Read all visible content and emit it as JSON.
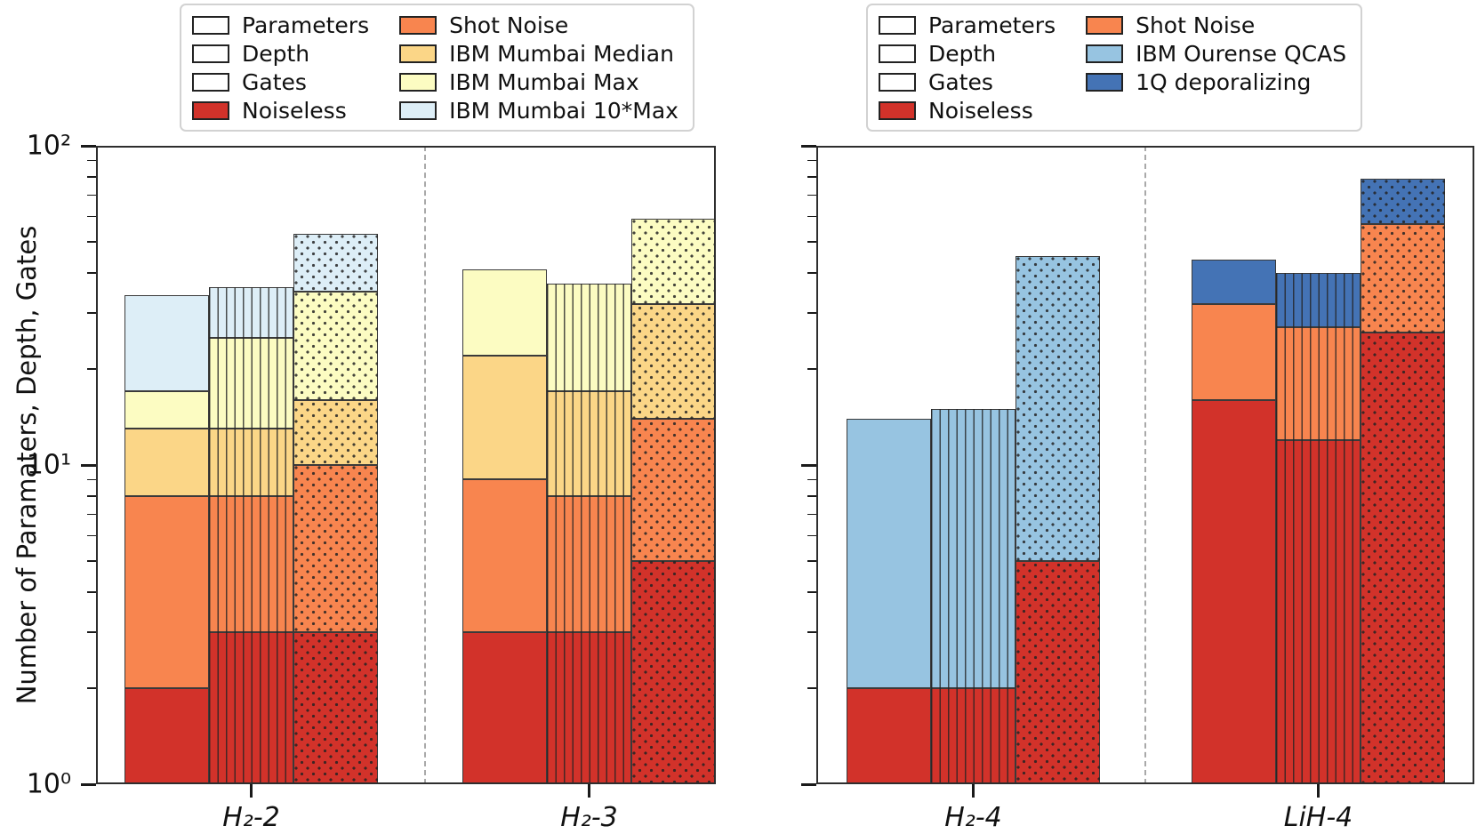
{
  "figure": {
    "ylabel": "Number of Paramaters, Depth, Gates",
    "y_axis": {
      "scale": "log",
      "min": 1,
      "max": 100,
      "tick_labels": [
        "10²",
        "10¹",
        "10⁰"
      ],
      "tick_values": [
        100,
        10,
        1
      ]
    }
  },
  "colors": {
    "noiseless": "#d2322a",
    "shot_noise": "#f8854f",
    "ibm_mumbai_median": "#fbd687",
    "ibm_mumbai_max": "#fcfcc2",
    "ibm_mumbai_10max": "#ddeef7",
    "ibm_ourense_qcas": "#97c4e1",
    "one_q_deporalizing": "#4473b5",
    "unfilled": "#ffffff"
  },
  "legend_left": {
    "columns": [
      [
        {
          "label": "Parameters",
          "fill": "#ffffff",
          "hatch": "none"
        },
        {
          "label": "Depth",
          "fill": "#ffffff",
          "hatch": "vertical"
        },
        {
          "label": "Gates",
          "fill": "#ffffff",
          "hatch": "dots"
        },
        {
          "label": "Noiseless",
          "fill": "#d2322a",
          "hatch": "none"
        }
      ],
      [
        {
          "label": "Shot Noise",
          "fill": "#f8854f",
          "hatch": "none"
        },
        {
          "label": "IBM Mumbai Median",
          "fill": "#fbd687",
          "hatch": "none"
        },
        {
          "label": "IBM Mumbai Max",
          "fill": "#fcfcc2",
          "hatch": "none"
        },
        {
          "label": "IBM Mumbai 10*Max",
          "fill": "#ddeef7",
          "hatch": "none"
        }
      ]
    ]
  },
  "legend_right": {
    "columns": [
      [
        {
          "label": "Parameters",
          "fill": "#ffffff",
          "hatch": "none"
        },
        {
          "label": "Depth",
          "fill": "#ffffff",
          "hatch": "vertical"
        },
        {
          "label": "Gates",
          "fill": "#ffffff",
          "hatch": "dots"
        },
        {
          "label": "Noiseless",
          "fill": "#d2322a",
          "hatch": "none"
        }
      ],
      [
        {
          "label": "Shot Noise",
          "fill": "#f8854f",
          "hatch": "none"
        },
        {
          "label": "IBM Ourense QCAS",
          "fill": "#97c4e1",
          "hatch": "none"
        },
        {
          "label": "1Q deporalizing",
          "fill": "#4473b5",
          "hatch": "none"
        }
      ]
    ]
  },
  "chart_data": [
    {
      "type": "bar",
      "panel": "left",
      "yscale": "log",
      "ylim": [
        1,
        100
      ],
      "ylabel": "Number of Paramaters, Depth, Gates",
      "grid": false,
      "legend_position": "top",
      "categories": [
        "H₂-2",
        "H₂-3"
      ],
      "bar_types": [
        {
          "name": "Parameters",
          "hatch": "none"
        },
        {
          "name": "Depth",
          "hatch": "vertical"
        },
        {
          "name": "Gates",
          "hatch": "dots"
        }
      ],
      "series": [
        {
          "name": "Noiseless",
          "color": "#d2322a"
        },
        {
          "name": "Shot Noise",
          "color": "#f8854f"
        },
        {
          "name": "IBM Mumbai Median",
          "color": "#fbd687"
        },
        {
          "name": "IBM Mumbai Max",
          "color": "#fcfcc2"
        },
        {
          "name": "IBM Mumbai 10*Max",
          "color": "#ddeef7"
        }
      ],
      "stack_note": "values are cumulative stack tops read off the log axis; every stack starts at 1",
      "bars": [
        {
          "category": "H₂-2",
          "bar_type": "Parameters",
          "cumulative": {
            "Noiseless": 2,
            "Shot Noise": 8,
            "IBM Mumbai Median": 13,
            "IBM Mumbai Max": 17,
            "IBM Mumbai 10*Max": 34
          }
        },
        {
          "category": "H₂-2",
          "bar_type": "Depth",
          "cumulative": {
            "Noiseless": 3,
            "Shot Noise": 8,
            "IBM Mumbai Median": 13,
            "IBM Mumbai Max": 25,
            "IBM Mumbai 10*Max": 36
          }
        },
        {
          "category": "H₂-2",
          "bar_type": "Gates",
          "cumulative": {
            "Noiseless": 3,
            "Shot Noise": 10,
            "IBM Mumbai Median": 16,
            "IBM Mumbai Max": 35,
            "IBM Mumbai 10*Max": 53
          }
        },
        {
          "category": "H₂-3",
          "bar_type": "Parameters",
          "cumulative": {
            "Noiseless": 3,
            "Shot Noise": 9,
            "IBM Mumbai Median": 22,
            "IBM Mumbai Max": 41
          }
        },
        {
          "category": "H₂-3",
          "bar_type": "Depth",
          "cumulative": {
            "Noiseless": 3,
            "Shot Noise": 8,
            "IBM Mumbai Median": 17,
            "IBM Mumbai Max": 37
          }
        },
        {
          "category": "H₂-3",
          "bar_type": "Gates",
          "cumulative": {
            "Noiseless": 5,
            "Shot Noise": 14,
            "IBM Mumbai Median": 32,
            "IBM Mumbai Max": 59
          }
        }
      ]
    },
    {
      "type": "bar",
      "panel": "right",
      "yscale": "log",
      "ylim": [
        1,
        100
      ],
      "grid": false,
      "legend_position": "top",
      "categories": [
        "H₂-4",
        "LiH-4"
      ],
      "bar_types": [
        {
          "name": "Parameters",
          "hatch": "none"
        },
        {
          "name": "Depth",
          "hatch": "vertical"
        },
        {
          "name": "Gates",
          "hatch": "dots"
        }
      ],
      "series": [
        {
          "name": "Noiseless",
          "color": "#d2322a"
        },
        {
          "name": "Shot Noise",
          "color": "#f8854f"
        },
        {
          "name": "IBM Ourense QCAS",
          "color": "#97c4e1"
        },
        {
          "name": "1Q deporalizing",
          "color": "#4473b5"
        }
      ],
      "stack_note": "values are cumulative stack tops read off the log axis; every stack starts at 1",
      "bars": [
        {
          "category": "H₂-4",
          "bar_type": "Parameters",
          "cumulative": {
            "Noiseless": 2,
            "IBM Ourense QCAS": 14
          }
        },
        {
          "category": "H₂-4",
          "bar_type": "Depth",
          "cumulative": {
            "Noiseless": 2,
            "IBM Ourense QCAS": 15
          }
        },
        {
          "category": "H₂-4",
          "bar_type": "Gates",
          "cumulative": {
            "Noiseless": 5,
            "IBM Ourense QCAS": 45
          }
        },
        {
          "category": "LiH-4",
          "bar_type": "Parameters",
          "cumulative": {
            "Noiseless": 16,
            "Shot Noise": 32,
            "1Q deporalizing": 44
          }
        },
        {
          "category": "LiH-4",
          "bar_type": "Depth",
          "cumulative": {
            "Noiseless": 12,
            "Shot Noise": 27,
            "1Q deporalizing": 40
          }
        },
        {
          "category": "LiH-4",
          "bar_type": "Gates",
          "cumulative": {
            "Noiseless": 26,
            "Shot Noise": 57,
            "1Q deporalizing": 79
          }
        }
      ]
    }
  ]
}
